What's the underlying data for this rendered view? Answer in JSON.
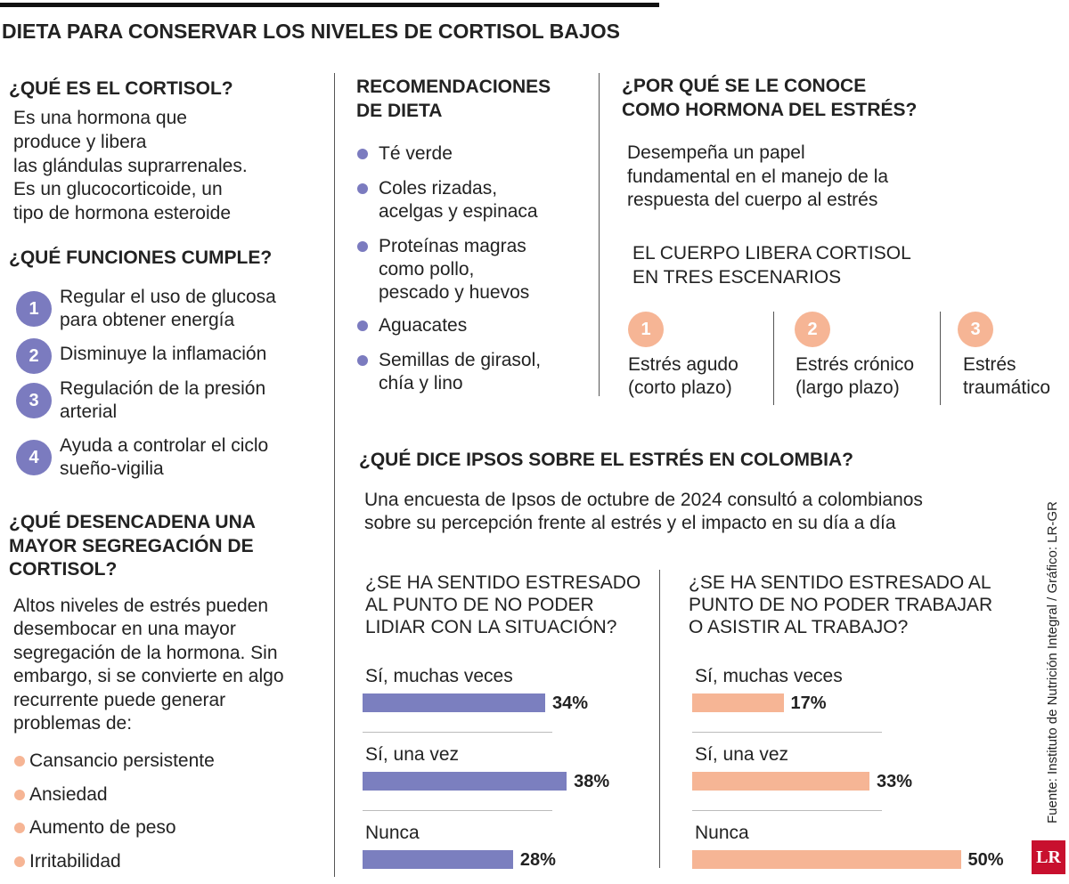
{
  "title": "DIETA PARA CONSERVAR LOS NIVELES DE CORTISOL BAJOS",
  "cortisol": {
    "heading": "¿QUÉ ES EL CORTISOL?",
    "text": [
      "Es una hormona que",
      "produce y libera",
      "las glándulas suprarrenales.",
      "Es un glucocorticoide, un",
      "tipo de hormona esteroide"
    ]
  },
  "funciones": {
    "heading": "¿QUÉ FUNCIONES CUMPLE?",
    "items": [
      {
        "number": "1",
        "lines": [
          "Regular el uso de glucosa",
          "para obtener energía"
        ]
      },
      {
        "number": "2",
        "lines": [
          "Disminuye la inflamación"
        ]
      },
      {
        "number": "3",
        "lines": [
          "Regulación de la presión",
          "arterial"
        ]
      },
      {
        "number": "4",
        "lines": [
          "Ayuda a controlar el ciclo",
          "sueño-vigilia"
        ]
      }
    ]
  },
  "desencadena": {
    "heading": [
      "¿QUÉ DESENCADENA UNA",
      "MAYOR SEGREGACIÓN DE",
      "CORTISOL?"
    ],
    "text": [
      "Altos niveles de estrés pueden",
      "desembocar en una mayor",
      "segregación de la hormona. Sin",
      "embargo, si se convierte en algo",
      "recurrente puede generar",
      "problemas de:"
    ],
    "problems": [
      "Cansancio persistente",
      "Ansiedad",
      "Aumento de peso",
      "Irritabilidad"
    ]
  },
  "dieta": {
    "heading": [
      "RECOMENDACIONES",
      "DE DIETA"
    ],
    "items": [
      [
        "Té verde"
      ],
      [
        "Coles rizadas,",
        "acelgas y espinaca"
      ],
      [
        "Proteínas magras",
        "como pollo,",
        "pescado y huevos"
      ],
      [
        "Aguacates"
      ],
      [
        "Semillas de girasol,",
        "chía y lino"
      ]
    ]
  },
  "estres": {
    "heading": [
      "¿POR QUÉ SE LE CONOCE",
      "COMO HORMONA DEL ESTRÉS?"
    ],
    "text": [
      "Desempeña un papel",
      "fundamental en el manejo de la",
      "respuesta del cuerpo al estrés"
    ],
    "subheading": [
      "EL CUERPO LIBERA CORTISOL",
      "EN TRES ESCENARIOS"
    ],
    "scenarios": [
      {
        "number": "1",
        "lines": [
          "Estrés agudo",
          "(corto plazo)"
        ]
      },
      {
        "number": "2",
        "lines": [
          "Estrés crónico",
          "(largo plazo)"
        ]
      },
      {
        "number": "3",
        "lines": [
          "Estrés",
          "traumático"
        ]
      }
    ]
  },
  "ipsos": {
    "heading": "¿QUÉ DICE IPSOS SOBRE EL ESTRÉS EN COLOMBIA?",
    "text": [
      "Una encuesta de Ipsos de octubre de 2024 consultó a colombianos",
      "sobre su percepción frente al estrés y el impacto en su día a día"
    ]
  },
  "chart_data": [
    {
      "type": "bar",
      "title": [
        "¿SE HA SENTIDO ESTRESADO",
        "AL PUNTO DE NO PODER",
        "LIDIAR CON LA SITUACIÓN?"
      ],
      "categories": [
        "Sí, muchas veces",
        "Sí, una vez",
        "Nunca"
      ],
      "values": [
        34,
        38,
        28
      ],
      "value_labels": [
        "34%",
        "38%",
        "28%"
      ],
      "color": "#7b7fbf"
    },
    {
      "type": "bar",
      "title": [
        "¿SE HA SENTIDO ESTRESADO AL",
        "PUNTO DE NO PODER TRABAJAR",
        "O ASISTIR AL TRABAJO?"
      ],
      "categories": [
        "Sí, muchas veces",
        "Sí, una vez",
        "Nunca"
      ],
      "values": [
        17,
        33,
        50
      ],
      "value_labels": [
        "17%",
        "33%",
        "50%"
      ],
      "color": "#f6b595"
    }
  ],
  "source": "Fuente: Instituto de Nutrición Integral / Gráfico: LR-GR",
  "logo": "LR"
}
